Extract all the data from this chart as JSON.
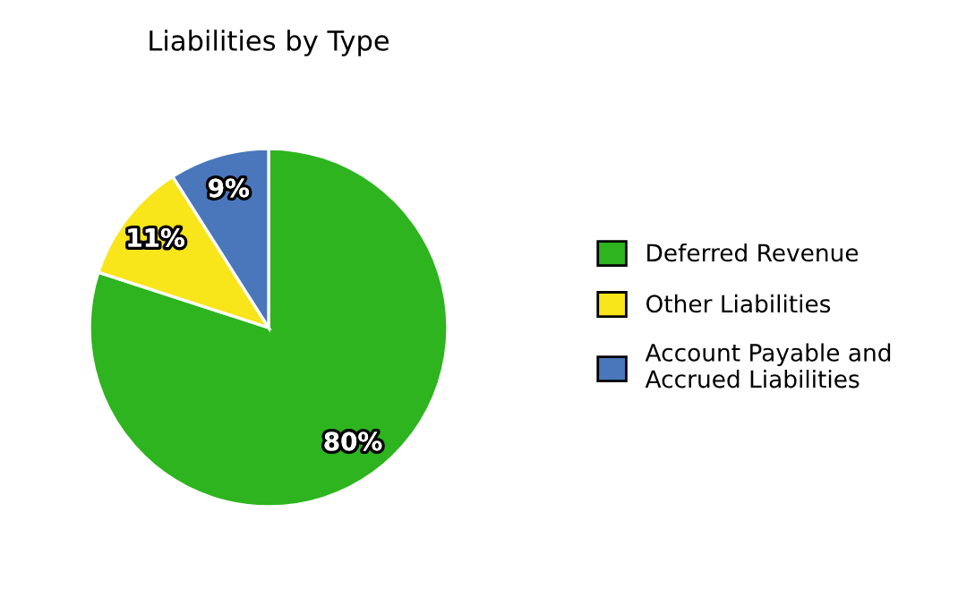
{
  "chart_data": {
    "type": "pie",
    "title": "Liabilities by Type",
    "categories": [
      "Deferred Revenue",
      "Other Liabilities",
      "Account Payable and\nAccrued Liabilities"
    ],
    "values": [
      80,
      11,
      9
    ],
    "colors": [
      "#2db41e",
      "#f8e51a",
      "#4a77bb"
    ],
    "value_labels": [
      "80%",
      "11%",
      "9%"
    ],
    "legend": "right"
  }
}
